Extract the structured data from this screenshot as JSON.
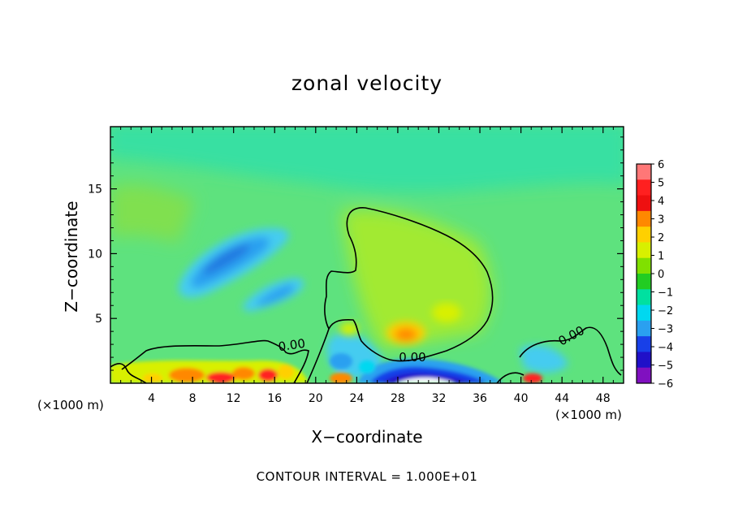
{
  "chart_data": {
    "type": "heatmap",
    "title": "zonal velocity",
    "xlabel": "X−coordinate",
    "ylabel": "Z−coordinate",
    "x_unit": "(×1000 m)",
    "z_unit": "(×1000 m)",
    "xlim": [
      0,
      50
    ],
    "ylim": [
      0,
      19.8
    ],
    "x_ticks": [
      4,
      8,
      12,
      16,
      20,
      24,
      28,
      32,
      36,
      40,
      44,
      48
    ],
    "y_ticks": [
      5,
      10,
      15
    ],
    "colorbar": {
      "levels": [
        6,
        5,
        4,
        3,
        2,
        1,
        0,
        -1,
        -2,
        -3,
        -4,
        -5,
        -6
      ],
      "colors": [
        "#ff7777",
        "#ff2020",
        "#ee1010",
        "#ff8800",
        "#ffd000",
        "#d8f000",
        "#80e000",
        "#22cc22",
        "#00e0a0",
        "#00d8f0",
        "#2aa0f0",
        "#1840e8",
        "#2010c8",
        "#8010c0"
      ]
    },
    "contours": [
      {
        "level": 0,
        "label": "0.00"
      },
      {
        "level": 0,
        "label": "0.00"
      },
      {
        "level": 0,
        "label": "0.00"
      }
    ],
    "features": [
      {
        "name": "negative core upper",
        "x": [
          6,
          14
        ],
        "z": [
          8,
          12
        ],
        "min_value": -3
      },
      {
        "name": "negative core middle",
        "x": [
          13,
          18
        ],
        "z": [
          5.5,
          7.5
        ],
        "min_value": -3
      },
      {
        "name": "strong negative near surface",
        "x": [
          24,
          36
        ],
        "z": [
          0,
          1.5
        ],
        "min_value": -6
      },
      {
        "name": "positive maximum",
        "x": [
          28,
          30
        ],
        "z": [
          3,
          4
        ],
        "max_value": 3
      },
      {
        "name": "positive near-surface cells",
        "x": [
          2,
          18
        ],
        "z": [
          0,
          1.5
        ],
        "max_value": 6
      }
    ],
    "contour_interval_text": "CONTOUR INTERVAL = 1.000E+01"
  }
}
